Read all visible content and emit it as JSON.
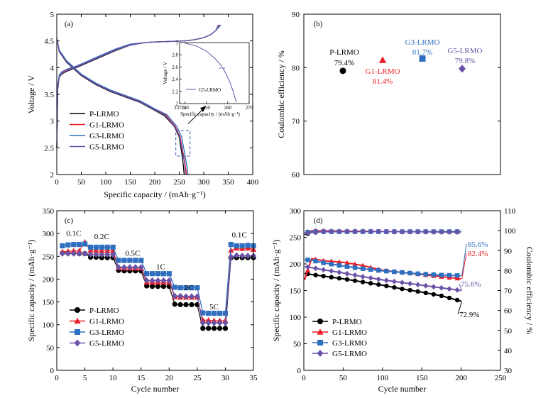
{
  "colors": {
    "P-LRMO": "#000000",
    "G1-LRMO": "#ed1c24",
    "G3-LRMO": "#2e6fbf",
    "G5-LRMO": "#6a52a8",
    "frame": "#000000"
  },
  "chart_data": [
    {
      "panel": "(a)",
      "type": "line",
      "xlabel": "Specific capacity / (mAh·g⁻¹)",
      "ylabel": "Voltage / V",
      "xlim": [
        0,
        400
      ],
      "ylim": [
        2.0,
        5.0
      ],
      "xticks": [
        0,
        50,
        100,
        150,
        200,
        250,
        300,
        350,
        400
      ],
      "yticks": [
        2.0,
        2.5,
        3.0,
        3.5,
        4.0,
        4.5,
        5.0
      ],
      "legend_position": "lower-left",
      "series": [
        {
          "name": "P-LRMO",
          "charge": {
            "x": [
              0,
              2,
              5,
              10,
              20,
              40,
              60,
              90,
              120,
              150,
              180,
              200,
              230,
              260,
              280,
              300,
              315,
              325,
              330
            ],
            "y": [
              2.5,
              3.6,
              3.82,
              3.88,
              3.93,
              4.0,
              4.08,
              4.2,
              4.32,
              4.42,
              4.47,
              4.48,
              4.49,
              4.5,
              4.52,
              4.56,
              4.62,
              4.7,
              4.8
            ]
          },
          "discharge": {
            "x": [
              0,
              5,
              20,
              50,
              80,
              110,
              140,
              170,
              200,
              220,
              240,
              250,
              255,
              258,
              260
            ],
            "y": [
              4.55,
              4.3,
              4.1,
              3.85,
              3.68,
              3.55,
              3.45,
              3.35,
              3.2,
              3.1,
              2.9,
              2.7,
              2.4,
              2.2,
              2.0
            ]
          }
        },
        {
          "name": "G1-LRMO",
          "charge": {
            "x": [
              0,
              2,
              5,
              10,
              20,
              40,
              60,
              90,
              120,
              150,
              180,
              200,
              230,
              260,
              280,
              300,
              315,
              325,
              333
            ],
            "y": [
              2.5,
              3.65,
              3.84,
              3.9,
              3.95,
              4.02,
              4.1,
              4.22,
              4.34,
              4.43,
              4.47,
              4.48,
              4.49,
              4.5,
              4.52,
              4.56,
              4.62,
              4.7,
              4.8
            ]
          },
          "discharge": {
            "x": [
              0,
              5,
              20,
              50,
              80,
              110,
              140,
              170,
              200,
              222,
              242,
              252,
              258,
              262,
              265
            ],
            "y": [
              4.55,
              4.32,
              4.12,
              3.87,
              3.7,
              3.57,
              3.47,
              3.37,
              3.22,
              3.12,
              2.9,
              2.7,
              2.4,
              2.2,
              2.0
            ]
          }
        },
        {
          "name": "G3-LRMO",
          "charge": {
            "x": [
              0,
              2,
              5,
              10,
              20,
              40,
              60,
              90,
              120,
              150,
              180,
              200,
              230,
              260,
              280,
              300,
              315,
              325,
              335
            ],
            "y": [
              2.5,
              3.7,
              3.86,
              3.92,
              3.97,
              4.03,
              4.11,
              4.23,
              4.35,
              4.44,
              4.47,
              4.48,
              4.49,
              4.5,
              4.52,
              4.56,
              4.62,
              4.7,
              4.8
            ]
          },
          "discharge": {
            "x": [
              0,
              5,
              20,
              50,
              80,
              110,
              140,
              170,
              200,
              225,
              245,
              255,
              261,
              265,
              268
            ],
            "y": [
              4.55,
              4.33,
              4.13,
              3.88,
              3.71,
              3.58,
              3.48,
              3.38,
              3.23,
              3.12,
              2.9,
              2.7,
              2.4,
              2.2,
              2.0
            ]
          }
        },
        {
          "name": "G5-LRMO",
          "charge": {
            "x": [
              0,
              2,
              5,
              10,
              20,
              40,
              60,
              90,
              120,
              150,
              180,
              200,
              230,
              260,
              280,
              300,
              315,
              325,
              330
            ],
            "y": [
              2.5,
              3.62,
              3.83,
              3.89,
              3.94,
              4.01,
              4.09,
              4.21,
              4.33,
              4.42,
              4.47,
              4.48,
              4.49,
              4.5,
              4.52,
              4.56,
              4.62,
              4.7,
              4.8
            ]
          },
          "discharge": {
            "x": [
              0,
              5,
              20,
              50,
              80,
              110,
              140,
              170,
              200,
              221,
              241,
              251,
              257,
              261,
              263
            ],
            "y": [
              4.55,
              4.31,
              4.11,
              3.86,
              3.69,
              3.56,
              3.46,
              3.36,
              3.21,
              3.11,
              2.9,
              2.7,
              2.4,
              2.2,
              2.0
            ]
          }
        }
      ],
      "inset": {
        "xlabel": "Specific capacity / (mAh·g⁻¹)",
        "ylabel": "Voltage / V",
        "xlim": [
          237.5,
          270
        ],
        "ylim": [
          2.0,
          3.0
        ],
        "xticks": [
          237.5,
          240,
          250,
          260,
          270
        ],
        "yticks": [
          2.0,
          2.2,
          2.4,
          2.6,
          2.8,
          3.0
        ],
        "legend": "G5-LRMO",
        "series": {
          "x": [
            240,
            245,
            250,
            254,
            257,
            259,
            261,
            262.5,
            263.5,
            264
          ],
          "y": [
            2.99,
            2.95,
            2.86,
            2.74,
            2.62,
            2.5,
            2.35,
            2.2,
            2.08,
            2.02
          ]
        },
        "marker": {
          "x": [
            256,
            259
          ],
          "y": 2.58
        }
      }
    },
    {
      "panel": "(b)",
      "type": "scatter",
      "xlabel": "",
      "ylabel": "Coulombic efficiency / %",
      "ylim": [
        60,
        90
      ],
      "yticks": [
        60,
        70,
        80,
        90
      ],
      "points": [
        {
          "name": "P-LRMO",
          "value": 79.4,
          "label": "79.4%",
          "marker": "circle"
        },
        {
          "name": "G1-LRMO",
          "value": 81.4,
          "label": "81.4%",
          "marker": "triangle"
        },
        {
          "name": "G3-LRMO",
          "value": 81.7,
          "label": "81.7%",
          "marker": "square"
        },
        {
          "name": "G5-LRMO",
          "value": 79.8,
          "label": "79.8%",
          "marker": "diamond"
        }
      ]
    },
    {
      "panel": "(c)",
      "type": "scatter",
      "xlabel": "Cycle number",
      "ylabel": "Specific capacity / (mAh·g⁻¹)",
      "xlim": [
        0,
        35
      ],
      "ylim": [
        0,
        350
      ],
      "xticks": [
        0,
        5,
        10,
        15,
        20,
        25,
        30,
        35
      ],
      "yticks": [
        0,
        50,
        100,
        150,
        200,
        250,
        300,
        350
      ],
      "legend_position": "lower-left",
      "rate_labels": [
        {
          "text": "0.1C",
          "x": 3,
          "y": 295
        },
        {
          "text": "0.2C",
          "x": 8,
          "y": 288
        },
        {
          "text": "0.5C",
          "x": 13.5,
          "y": 251
        },
        {
          "text": "1C",
          "x": 18.5,
          "y": 222
        },
        {
          "text": "2C",
          "x": 23.5,
          "y": 176
        },
        {
          "text": "5C",
          "x": 28,
          "y": 134
        },
        {
          "text": "0.1C",
          "x": 32.5,
          "y": 292
        }
      ],
      "x": [
        1,
        2,
        3,
        4,
        5,
        6,
        7,
        8,
        9,
        10,
        11,
        12,
        13,
        14,
        15,
        16,
        17,
        18,
        19,
        20,
        21,
        22,
        23,
        24,
        25,
        26,
        27,
        28,
        29,
        30,
        31,
        32,
        33,
        34,
        35
      ],
      "series": [
        {
          "name": "P-LRMO",
          "marker": "circle",
          "values": [
            257,
            257,
            257,
            256,
            256,
            248,
            248,
            247,
            247,
            247,
            219,
            218,
            218,
            218,
            218,
            185,
            184,
            184,
            184,
            184,
            145,
            144,
            144,
            144,
            144,
            92,
            92,
            92,
            92,
            92,
            247,
            247,
            247,
            247,
            247
          ]
        },
        {
          "name": "G1-LRMO",
          "marker": "triangle",
          "values": [
            260,
            261,
            262,
            262,
            281,
            263,
            262,
            262,
            262,
            262,
            225,
            224,
            224,
            224,
            224,
            193,
            193,
            193,
            193,
            193,
            161,
            160,
            160,
            160,
            160,
            110,
            110,
            109,
            109,
            109,
            263,
            268,
            267,
            268,
            265
          ]
        },
        {
          "name": "G3-LRMO",
          "marker": "square",
          "values": [
            273,
            275,
            276,
            276,
            277,
            270,
            270,
            270,
            270,
            270,
            241,
            241,
            241,
            241,
            241,
            212,
            212,
            212,
            212,
            212,
            182,
            181,
            181,
            181,
            181,
            126,
            125,
            125,
            125,
            125,
            276,
            273,
            273,
            274,
            273
          ]
        },
        {
          "name": "G5-LRMO",
          "marker": "diamond",
          "values": [
            256,
            256,
            256,
            256,
            256,
            254,
            254,
            254,
            254,
            254,
            226,
            226,
            226,
            226,
            226,
            197,
            197,
            197,
            197,
            197,
            163,
            163,
            162,
            162,
            162,
            104,
            104,
            104,
            104,
            104,
            249,
            252,
            251,
            251,
            251
          ]
        }
      ]
    },
    {
      "panel": "(d)",
      "type": "scatter",
      "xlabel": "Cycle number",
      "ylabel": "Specific capacity / (mAh·g⁻¹)",
      "y2label": "Coulombic efficiency / %",
      "xlim": [
        0,
        250
      ],
      "ylim": [
        0,
        300
      ],
      "y2lim": [
        30,
        110
      ],
      "xticks": [
        0,
        50,
        100,
        150,
        200,
        250
      ],
      "yticks": [
        0,
        50,
        100,
        150,
        200,
        250,
        300
      ],
      "y2ticks": [
        30,
        40,
        50,
        60,
        70,
        80,
        90,
        100,
        110
      ],
      "legend_position": "lower-left",
      "end_labels": [
        {
          "series": "G3-LRMO",
          "text": "85.6%",
          "capacity": 178
        },
        {
          "series": "G1-LRMO",
          "text": "82.4%",
          "capacity": 172
        },
        {
          "series": "G5-LRMO",
          "text": "75.6%",
          "capacity": 150
        },
        {
          "series": "P-LRMO",
          "text": "72.9%",
          "capacity": 130
        }
      ],
      "series": [
        {
          "name": "P-LRMO",
          "marker": "circle",
          "capacity": {
            "x": [
              1,
              10,
              25,
              50,
              75,
              100,
              125,
              150,
              175,
              200
            ],
            "y": [
              182,
              180,
              177,
              172,
              166,
              160,
              153,
              147,
              140,
              130
            ]
          },
          "efficiency": {
            "x": [
              1,
              10,
              25,
              50,
              75,
              100,
              125,
              150,
              175,
              200
            ],
            "y": [
              98,
              99,
              99.5,
              99.5,
              99.6,
              99.6,
              99.5,
              99.5,
              99.5,
              99.6
            ]
          }
        },
        {
          "name": "G1-LRMO",
          "marker": "triangle",
          "capacity": {
            "x": [
              1,
              10,
              25,
              50,
              75,
              100,
              125,
              150,
              175,
              200
            ],
            "y": [
              170,
              210,
              206,
              203,
              197,
              188,
              184,
              180,
              176,
              172
            ]
          },
          "efficiency": {
            "x": [
              1,
              10,
              25,
              50,
              75,
              100,
              125,
              150,
              175,
              200
            ],
            "y": [
              99,
              100,
              100,
              99.8,
              99.8,
              99.6,
              99.6,
              99.5,
              99.5,
              99.4
            ]
          }
        },
        {
          "name": "G3-LRMO",
          "marker": "square",
          "capacity": {
            "x": [
              1,
              10,
              25,
              50,
              75,
              100,
              125,
              150,
              175,
              200
            ],
            "y": [
              208,
              207,
              202,
              196,
              191,
              187,
              184,
              181,
              179,
              178
            ]
          },
          "efficiency": {
            "x": [
              1,
              10,
              25,
              50,
              75,
              100,
              125,
              150,
              175,
              200
            ],
            "y": [
              99,
              99.5,
              99.5,
              99.5,
              99.5,
              99.5,
              99.5,
              99.5,
              99.5,
              99.5
            ]
          }
        },
        {
          "name": "G5-LRMO",
          "marker": "diamond",
          "capacity": {
            "x": [
              1,
              10,
              25,
              50,
              75,
              100,
              125,
              150,
              175,
              200
            ],
            "y": [
              195,
              193,
              189,
              183,
              176,
              170,
              165,
              160,
              155,
              150
            ]
          },
          "efficiency": {
            "x": [
              1,
              10,
              25,
              50,
              75,
              100,
              125,
              150,
              175,
              200
            ],
            "y": [
              98.5,
              99,
              99.5,
              99.5,
              99.5,
              99.5,
              99.4,
              99.4,
              99.3,
              99.3
            ]
          }
        }
      ]
    }
  ]
}
